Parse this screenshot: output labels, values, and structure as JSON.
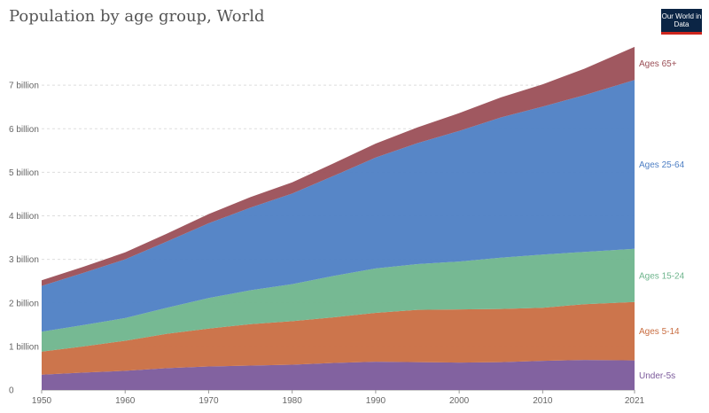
{
  "title": "Population by age group, World",
  "logo": "Our World in Data",
  "chart_data": {
    "type": "area",
    "title": "Population by age group, World",
    "stacked": true,
    "x": [
      1950,
      1955,
      1960,
      1965,
      1970,
      1975,
      1980,
      1985,
      1990,
      1995,
      2000,
      2005,
      2010,
      2015,
      2021
    ],
    "series": [
      {
        "name": "Under-5s",
        "color": "#7b5a9b",
        "values": [
          0.35,
          0.4,
          0.44,
          0.5,
          0.54,
          0.56,
          0.58,
          0.62,
          0.65,
          0.64,
          0.63,
          0.64,
          0.67,
          0.69,
          0.68
        ]
      },
      {
        "name": "Ages 5-14",
        "color": "#c96e42",
        "values": [
          0.53,
          0.6,
          0.69,
          0.79,
          0.87,
          0.95,
          1.0,
          1.05,
          1.12,
          1.2,
          1.22,
          1.22,
          1.22,
          1.28,
          1.34
        ]
      },
      {
        "name": "Ages 15-24",
        "color": "#6fb58d",
        "values": [
          0.46,
          0.49,
          0.52,
          0.6,
          0.7,
          0.78,
          0.85,
          0.95,
          1.02,
          1.05,
          1.1,
          1.18,
          1.22,
          1.2,
          1.22
        ]
      },
      {
        "name": "Ages 25-64",
        "color": "#4e7fc4",
        "values": [
          1.05,
          1.2,
          1.35,
          1.52,
          1.72,
          1.9,
          2.08,
          2.3,
          2.55,
          2.78,
          3.0,
          3.22,
          3.4,
          3.6,
          3.88
        ]
      },
      {
        "name": "Ages 65+",
        "color": "#9b4f57",
        "values": [
          0.13,
          0.14,
          0.16,
          0.18,
          0.21,
          0.24,
          0.26,
          0.29,
          0.32,
          0.36,
          0.41,
          0.46,
          0.51,
          0.61,
          0.76
        ]
      }
    ],
    "x_ticks": [
      "1950",
      "1960",
      "1970",
      "1980",
      "1990",
      "2000",
      "2010",
      "2021"
    ],
    "y_ticks": [
      "0",
      "1 billion",
      "2 billion",
      "3 billion",
      "4 billion",
      "5 billion",
      "6 billion",
      "7 billion"
    ],
    "y_tick_values": [
      0,
      1,
      2,
      3,
      4,
      5,
      6,
      7
    ],
    "xlim": [
      1950,
      2021
    ],
    "ylim": [
      0,
      8
    ],
    "grid": "horizontal dashed",
    "legend": "right, inline labels"
  }
}
